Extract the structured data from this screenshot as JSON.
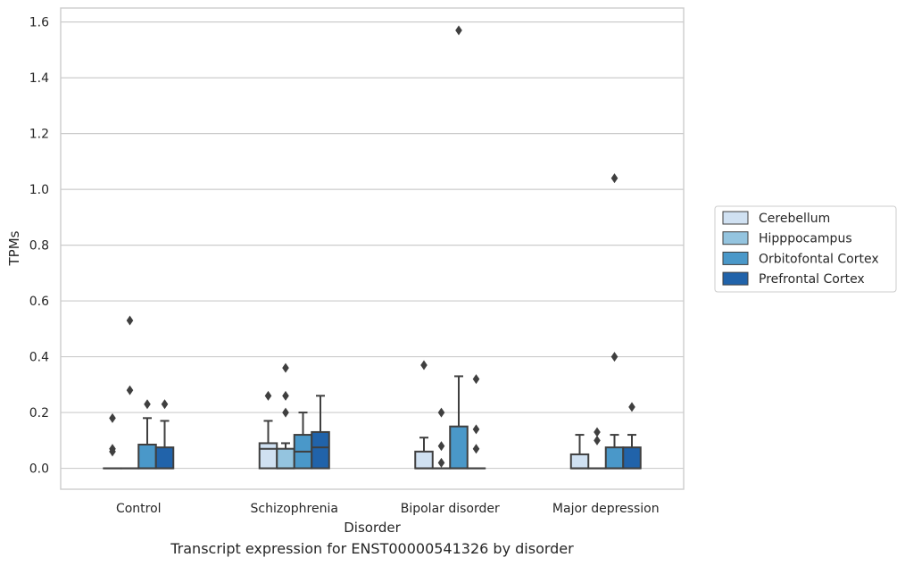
{
  "chart_data": {
    "type": "box",
    "xlabel": "Disorder",
    "ylabel": "TPMs",
    "ylim": [
      -0.075,
      1.65
    ],
    "yticks": [
      0.0,
      0.2,
      0.4,
      0.6,
      0.8,
      1.0,
      1.2,
      1.4,
      1.6
    ],
    "ytick_labels": [
      "0.0",
      "0.2",
      "0.4",
      "0.6",
      "0.8",
      "1.0",
      "1.2",
      "1.4",
      "1.6"
    ],
    "grid": true,
    "legend_position": "right",
    "categories": [
      "Control",
      "Schizophrenia",
      "Bipolar disorder",
      "Major depression"
    ],
    "series": [
      {
        "name": "Cerebellum",
        "color": "#d0e1f2",
        "boxes": [
          {
            "q1": 0.0,
            "median": 0.0,
            "q3": 0.0,
            "whisker_low": 0.0,
            "whisker_high": 0.0,
            "outliers": [
              0.18,
              0.07,
              0.06
            ]
          },
          {
            "q1": 0.0,
            "median": 0.07,
            "q3": 0.09,
            "whisker_low": 0.0,
            "whisker_high": 0.17,
            "outliers": [
              0.26
            ]
          },
          {
            "q1": 0.0,
            "median": 0.0,
            "q3": 0.06,
            "whisker_low": 0.0,
            "whisker_high": 0.11,
            "outliers": [
              0.37
            ]
          },
          {
            "q1": 0.0,
            "median": 0.0,
            "q3": 0.05,
            "whisker_low": 0.0,
            "whisker_high": 0.12,
            "outliers": []
          }
        ]
      },
      {
        "name": "Hipppocampus",
        "color": "#94c4df",
        "boxes": [
          {
            "q1": 0.0,
            "median": 0.0,
            "q3": 0.0,
            "whisker_low": 0.0,
            "whisker_high": 0.0,
            "outliers": [
              0.53,
              0.28
            ]
          },
          {
            "q1": 0.0,
            "median": 0.0,
            "q3": 0.07,
            "whisker_low": 0.0,
            "whisker_high": 0.09,
            "outliers": [
              0.36,
              0.26,
              0.2
            ]
          },
          {
            "q1": 0.0,
            "median": 0.0,
            "q3": 0.0,
            "whisker_low": 0.0,
            "whisker_high": 0.0,
            "outliers": [
              0.2,
              0.08,
              0.02
            ]
          },
          {
            "q1": 0.0,
            "median": 0.0,
            "q3": 0.0,
            "whisker_low": 0.0,
            "whisker_high": 0.0,
            "outliers": [
              0.13,
              0.1
            ]
          }
        ]
      },
      {
        "name": "Orbitofontal Cortex",
        "color": "#4a98c9",
        "boxes": [
          {
            "q1": 0.0,
            "median": 0.0,
            "q3": 0.085,
            "whisker_low": 0.0,
            "whisker_high": 0.18,
            "outliers": [
              0.23
            ]
          },
          {
            "q1": 0.0,
            "median": 0.06,
            "q3": 0.12,
            "whisker_low": 0.0,
            "whisker_high": 0.2,
            "outliers": []
          },
          {
            "q1": 0.0,
            "median": 0.0,
            "q3": 0.15,
            "whisker_low": 0.0,
            "whisker_high": 0.33,
            "outliers": [
              1.57
            ]
          },
          {
            "q1": 0.0,
            "median": 0.0,
            "q3": 0.075,
            "whisker_low": 0.0,
            "whisker_high": 0.12,
            "outliers": [
              1.04,
              0.4
            ]
          }
        ]
      },
      {
        "name": "Prefrontal Cortex",
        "color": "#2163aa",
        "boxes": [
          {
            "q1": 0.0,
            "median": 0.0,
            "q3": 0.075,
            "whisker_low": 0.0,
            "whisker_high": 0.17,
            "outliers": [
              0.23
            ]
          },
          {
            "q1": 0.0,
            "median": 0.075,
            "q3": 0.13,
            "whisker_low": 0.0,
            "whisker_high": 0.26,
            "outliers": []
          },
          {
            "q1": 0.0,
            "median": 0.0,
            "q3": 0.0,
            "whisker_low": 0.0,
            "whisker_high": 0.0,
            "outliers": [
              0.32,
              0.14,
              0.07
            ]
          },
          {
            "q1": 0.0,
            "median": 0.0,
            "q3": 0.075,
            "whisker_low": 0.0,
            "whisker_high": 0.12,
            "outliers": [
              0.22
            ]
          }
        ]
      }
    ]
  },
  "caption": "Transcript expression for ENST00000541326 by disorder",
  "colors": {
    "grid": "#cccccc",
    "frame": "#cccccc",
    "box_edge": "#3f3f3f"
  }
}
